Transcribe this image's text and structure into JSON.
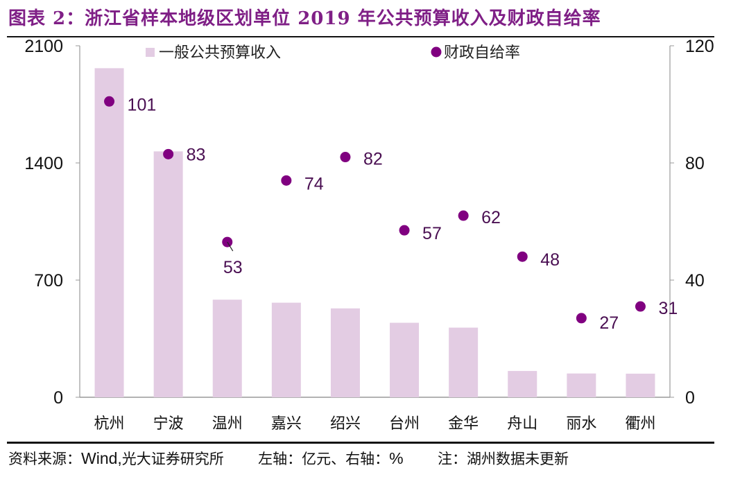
{
  "header": {
    "title": "图表 2：浙江省样本地级区划单位 2019 年公共预算收入及财政自给率"
  },
  "footer": {
    "source_label": "资料来源：",
    "source_wind": "Wind,",
    "source_rest": " 光大证券研究所",
    "axis_note_left": "左轴：亿元、右轴：",
    "axis_note_pct": "%",
    "note": "注：湖州数据未更新"
  },
  "colors": {
    "bar": "#e3cce3",
    "dot": "#800080",
    "label": "#4a0f52",
    "axis": "#999999",
    "title": "#7f1f86"
  },
  "chart_data": {
    "type": "bar",
    "title": "浙江省样本地级区划单位 2019 年公共预算收入及财政自给率",
    "categories": [
      "杭州",
      "宁波",
      "温州",
      "嘉兴",
      "绍兴",
      "台州",
      "金华",
      "舟山",
      "丽水",
      "衢州"
    ],
    "series": [
      {
        "name": "一般公共预算收入",
        "type": "bar",
        "axis": "left",
        "values": [
          1966,
          1469,
          583,
          565,
          531,
          445,
          416,
          157,
          142,
          141
        ]
      },
      {
        "name": "财政自给率",
        "type": "scatter",
        "axis": "right",
        "values": [
          101,
          83,
          53,
          74,
          82,
          57,
          62,
          48,
          27,
          31
        ],
        "data_labels": [
          "101",
          "83",
          "53",
          "74",
          "82",
          "57",
          "62",
          "48",
          "27",
          "31"
        ]
      }
    ],
    "left_axis": {
      "label": "亿元",
      "ylim": [
        0,
        2100
      ],
      "ticks": [
        0,
        700,
        1400,
        2100
      ]
    },
    "right_axis": {
      "label": "%",
      "ylim": [
        0,
        120
      ],
      "ticks": [
        0,
        40,
        80,
        120
      ]
    },
    "legend": {
      "placement": "top",
      "entries": [
        "一般公共预算收入",
        "财政自给率"
      ]
    },
    "grid": false
  }
}
